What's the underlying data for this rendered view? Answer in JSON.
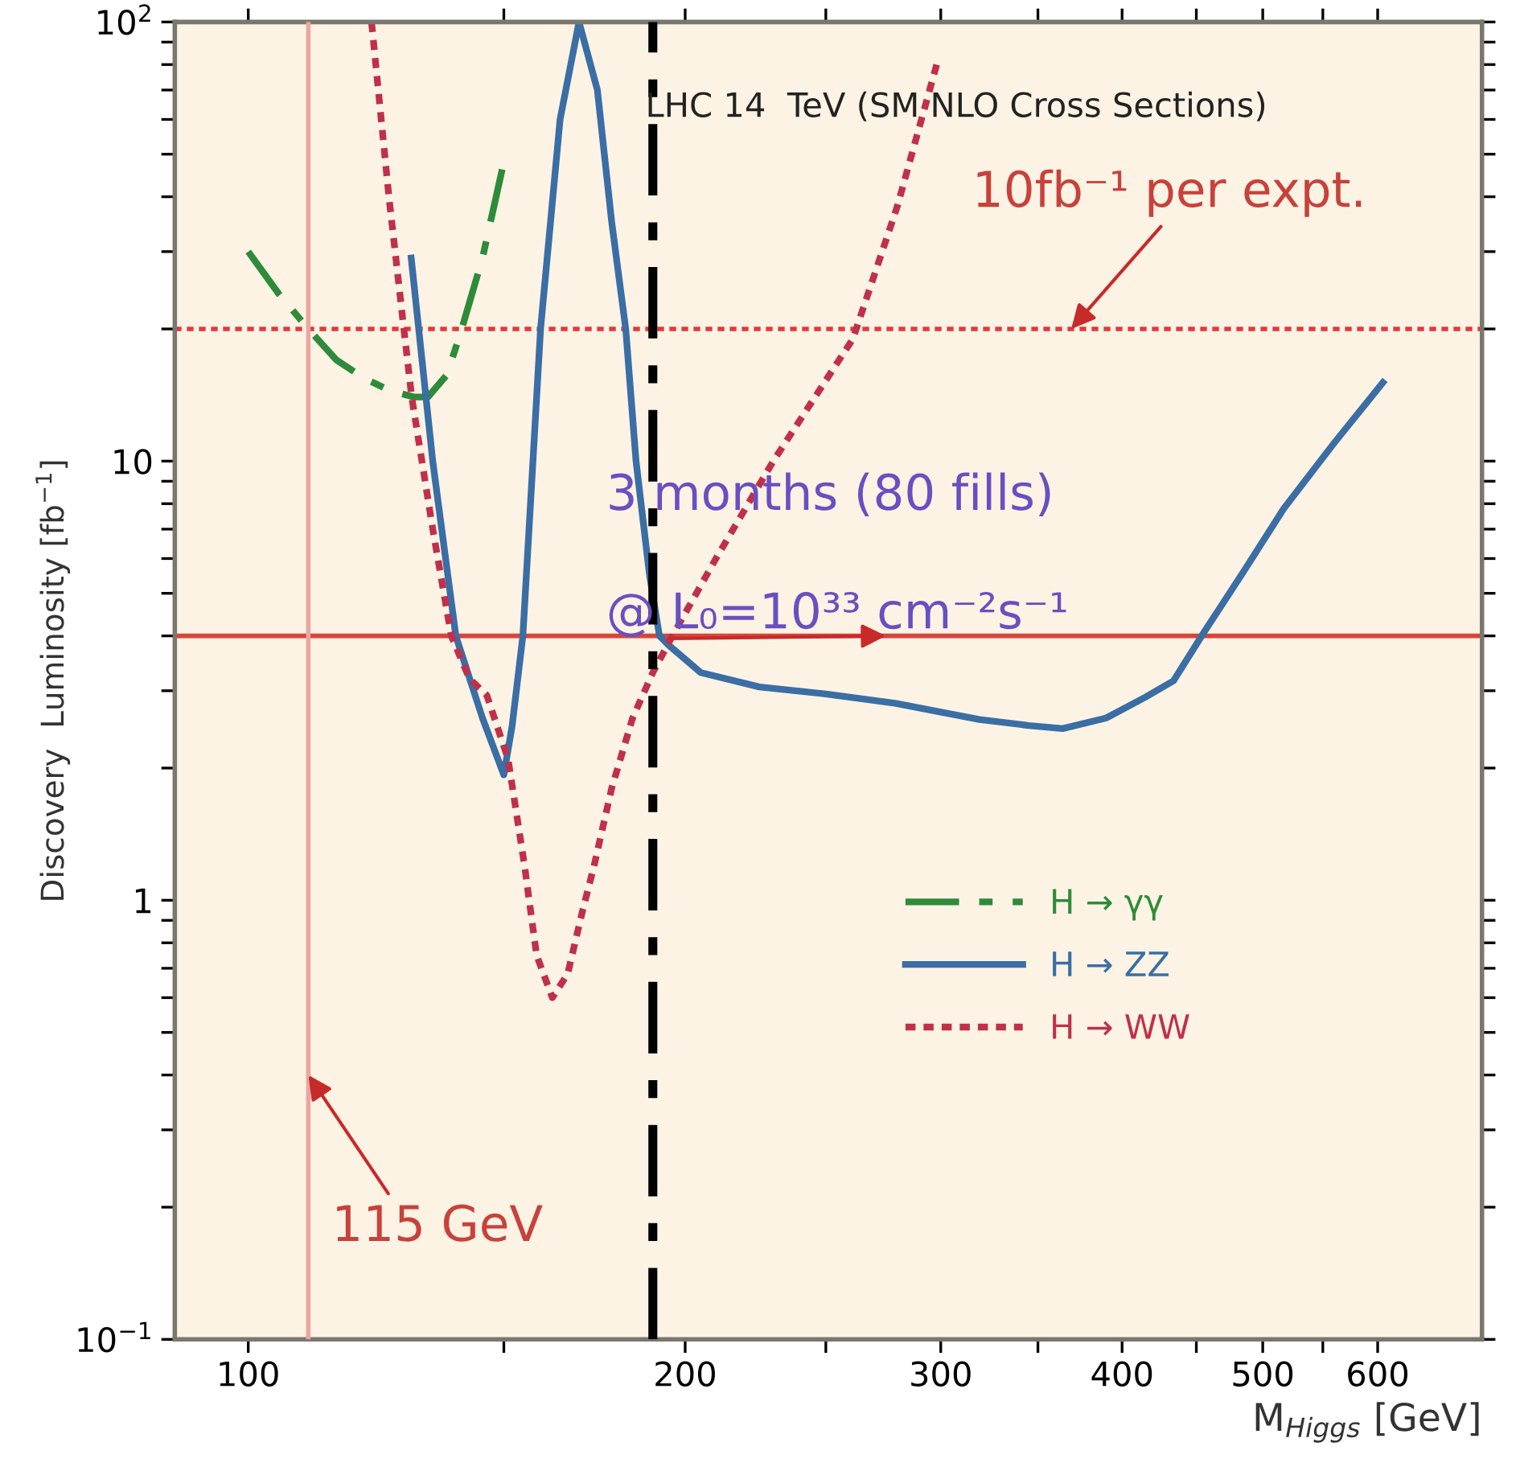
{
  "chart_data": {
    "type": "line",
    "title": "LHC 14  TeV (SM NLO Cross Sections)",
    "xlabel": "M$_{Higgs}$ [GeV]",
    "ylabel": "Discovery  Luminosity [fb$^{−1}$]",
    "log": "xy",
    "xlim": [
      89,
      708
    ],
    "ylim": [
      0.1,
      100
    ],
    "xticks": [
      100,
      {
        "value": 150,
        "label": null
      },
      200,
      {
        "value": 250,
        "label": null
      },
      300,
      {
        "value": 350,
        "label": null
      },
      400,
      {
        "value": 450,
        "label": null
      },
      500,
      {
        "value": 550,
        "label": null
      },
      600
    ],
    "yticks": [
      {
        "value": 0.1,
        "label": "10$^{−1}$"
      },
      {
        "value": 0.2,
        "label": null
      },
      {
        "value": 0.3,
        "label": null
      },
      {
        "value": 0.4,
        "label": null
      },
      {
        "value": 0.5,
        "label": null
      },
      {
        "value": 0.6,
        "label": null
      },
      {
        "value": 0.7,
        "label": null
      },
      {
        "value": 0.8,
        "label": null
      },
      {
        "value": 0.9,
        "label": null
      },
      1,
      {
        "value": 2,
        "label": null
      },
      {
        "value": 3,
        "label": null
      },
      {
        "value": 4,
        "label": null
      },
      {
        "value": 5,
        "label": null
      },
      {
        "value": 6,
        "label": null
      },
      {
        "value": 7,
        "label": null
      },
      {
        "value": 8,
        "label": null
      },
      {
        "value": 9,
        "label": null
      },
      10,
      {
        "value": 20,
        "label": null
      },
      {
        "value": 30,
        "label": null
      },
      {
        "value": 40,
        "label": null
      },
      {
        "value": 50,
        "label": null
      },
      {
        "value": 60,
        "label": null
      },
      {
        "value": 70,
        "label": null
      },
      {
        "value": 80,
        "label": null
      },
      {
        "value": 90,
        "label": null
      },
      {
        "value": 100,
        "label": "10$^{2}$"
      }
    ],
    "grid": false,
    "legend": "lower right",
    "series": [
      {
        "name": "H → γγ",
        "color": "#2e8b3a",
        "line_style": "dashed",
        "x": [
          100,
          105,
          110,
          115,
          120,
          125,
          130,
          133,
          137,
          140,
          145,
          150
        ],
        "values": [
          30,
          24,
          20,
          17,
          15.5,
          14.5,
          14,
          14,
          15.7,
          19.5,
          29,
          48
        ]
      },
      {
        "name": "H → ZZ",
        "color": "#3a6ea5",
        "line_style": "solid",
        "x": [
          129.5,
          134,
          139,
          145,
          150,
          152,
          154.6,
          159,
          164,
          169,
          174,
          178,
          182,
          185,
          189,
          192,
          195,
          205,
          225,
          250,
          279,
          319,
          345,
          364,
          390,
          415,
          434,
          456,
          485,
          517,
          560,
          605
        ],
        "values": [
          29,
          10,
          4,
          2.6,
          1.93,
          2.5,
          4,
          20,
          60,
          100,
          70,
          35,
          20,
          10,
          5.5,
          4,
          3.8,
          3.3,
          3.06,
          2.95,
          2.81,
          2.58,
          2.5,
          2.46,
          2.6,
          2.9,
          3.16,
          4.1,
          5.6,
          7.8,
          11,
          15.1
        ]
      },
      {
        "name": "H → WW",
        "color": "#c0304a",
        "line_style": "dotted",
        "x": [
          121.6,
          125,
          128,
          129.6,
          134,
          138,
          142,
          146,
          151,
          155,
          158,
          162,
          166,
          170,
          173,
          178,
          184,
          190,
          196,
          210,
          230,
          261,
          280,
          299
        ],
        "values": [
          100,
          40,
          20,
          14,
          7,
          4,
          3.2,
          2.93,
          2.1,
          1.2,
          0.75,
          0.6,
          0.68,
          0.95,
          1.19,
          1.8,
          2.6,
          3.3,
          4,
          6,
          10,
          19,
          38,
          83
        ]
      }
    ],
    "ref_lines": [
      {
        "axis": "y",
        "value": 20,
        "color": "#e03a3a",
        "line_style": "dotted"
      },
      {
        "axis": "y",
        "value": 4,
        "color": "#d9443a",
        "line_style": "solid"
      },
      {
        "axis": "x",
        "value": 110,
        "color": "#eaa6a0",
        "line_style": "solid"
      },
      {
        "axis": "x",
        "value": 190,
        "color": "#000000",
        "line_style": "dashed"
      }
    ],
    "annotations": [
      {
        "text": "10fb⁻¹ per expt.",
        "x": 369,
        "y": 20
      },
      "3 months (80 fills)",
      {
        "text": "@ L₀=10³³ cm⁻²s⁻¹",
        "x": 275,
        "y": 4
      },
      {
        "text": "115 GeV",
        "x": 110,
        "y": 0.4
      }
    ]
  }
}
